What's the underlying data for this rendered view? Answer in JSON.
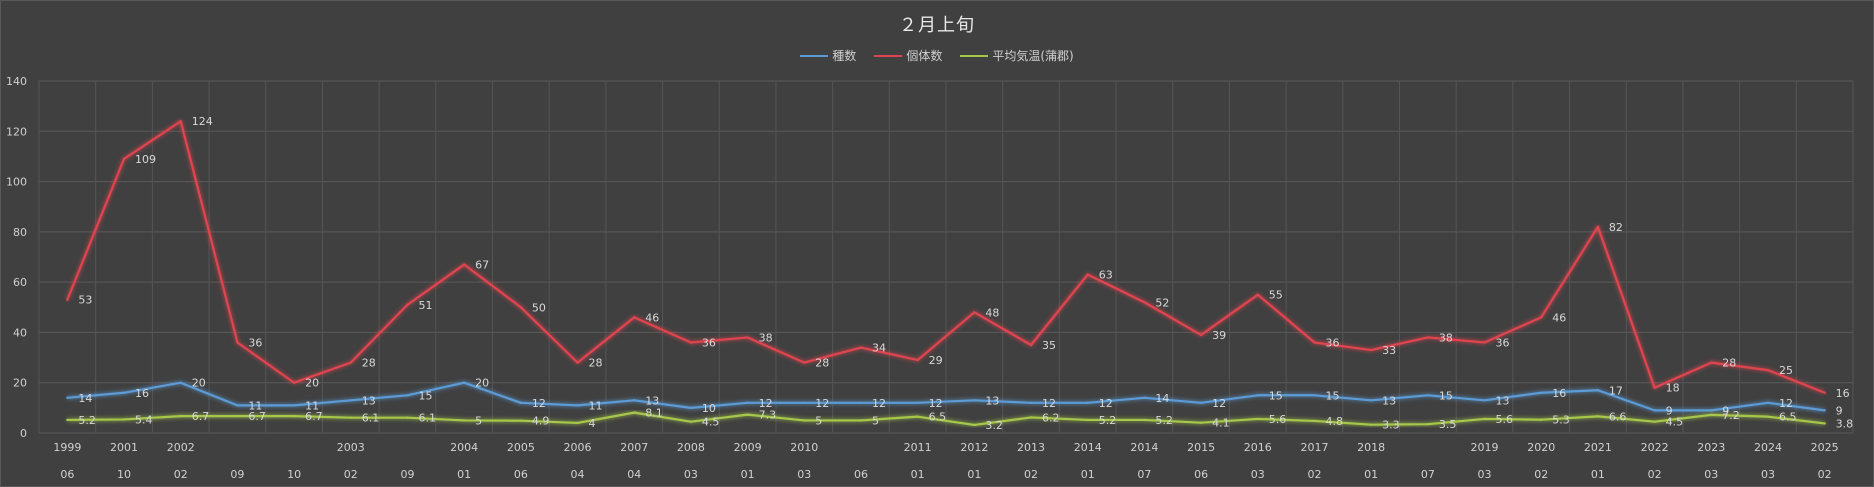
{
  "chart_data": {
    "type": "line",
    "title": "２月上旬",
    "ylim": [
      0,
      140
    ],
    "yticks": [
      0,
      20,
      40,
      60,
      80,
      100,
      120,
      140
    ],
    "grid": true,
    "legend_position": "top",
    "x_years": [
      "1999",
      "2001",
      "2002",
      "",
      "",
      "2003",
      "",
      "2004",
      "2005",
      "2006",
      "2007",
      "2008",
      "2009",
      "2010",
      "",
      "2011",
      "2012",
      "2013",
      "2014",
      "2014",
      "2015",
      "2016",
      "2017",
      "2018",
      "",
      "2019",
      "2020",
      "2021",
      "2022",
      "2023",
      "2024",
      "2025"
    ],
    "x_months": [
      "06",
      "10",
      "02",
      "09",
      "10",
      "02",
      "09",
      "01",
      "06",
      "04",
      "04",
      "03",
      "01",
      "03",
      "06",
      "01",
      "01",
      "02",
      "01",
      "07",
      "06",
      "03",
      "02",
      "01",
      "07",
      "03",
      "02",
      "01",
      "02",
      "03",
      "03",
      "02"
    ],
    "series": [
      {
        "name": "種数",
        "color": "#5b9bd5",
        "values": [
          14,
          16,
          20,
          11,
          11,
          13,
          15,
          20,
          12,
          11,
          13,
          10,
          12,
          12,
          12,
          12,
          13,
          12,
          12,
          14,
          12,
          15,
          15,
          13,
          15,
          13,
          16,
          17,
          9,
          9,
          12,
          9
        ]
      },
      {
        "name": "個体数",
        "color": "#e0454f",
        "values": [
          53,
          109,
          124,
          36,
          20,
          28,
          51,
          67,
          50,
          28,
          46,
          36,
          38,
          28,
          34,
          29,
          48,
          35,
          63,
          52,
          39,
          55,
          36,
          33,
          38,
          36,
          46,
          82,
          18,
          28,
          25,
          16
        ]
      },
      {
        "name": "平均気温(蒲郡)",
        "color": "#a6c74a",
        "values": [
          5.2,
          5.4,
          6.7,
          6.7,
          6.7,
          6.1,
          6.1,
          5,
          4.9,
          4,
          8.1,
          4.5,
          7.3,
          5,
          5,
          6.5,
          3.2,
          6.2,
          5.2,
          5.2,
          4.1,
          5.6,
          4.8,
          3.3,
          3.5,
          5.6,
          5.3,
          6.6,
          4.5,
          7.2,
          6.5,
          3.8
        ]
      }
    ]
  }
}
